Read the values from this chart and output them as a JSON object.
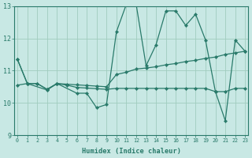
{
  "xlabel": "Humidex (Indice chaleur)",
  "bg_color": "#c8e8e4",
  "line_color": "#297a6a",
  "grid_color": "#a0ccbe",
  "xlim": [
    -0.3,
    23.3
  ],
  "ylim": [
    9,
    13
  ],
  "yticks": [
    9,
    10,
    11,
    12,
    13
  ],
  "xticks": [
    0,
    1,
    2,
    3,
    4,
    5,
    6,
    7,
    8,
    9,
    10,
    11,
    12,
    13,
    14,
    15,
    16,
    17,
    18,
    19,
    20,
    21,
    22,
    23
  ],
  "line_volatile_x": [
    0,
    1,
    3,
    4,
    6,
    7,
    8,
    9,
    10,
    11,
    12,
    13,
    14,
    15,
    16,
    17,
    18,
    19,
    20,
    21,
    22,
    23
  ],
  "line_volatile_y": [
    11.35,
    10.6,
    10.4,
    10.6,
    10.3,
    10.3,
    9.85,
    9.95,
    12.2,
    13.05,
    13.05,
    11.15,
    11.8,
    12.85,
    12.85,
    12.4,
    12.75,
    11.95,
    10.35,
    9.45,
    11.95,
    11.6
  ],
  "line_rising_x": [
    0,
    1,
    2,
    3,
    4,
    5,
    6,
    7,
    8,
    9,
    10,
    11,
    12,
    13,
    14,
    15,
    16,
    17,
    18,
    19,
    20,
    21,
    22,
    23
  ],
  "line_rising_y": [
    11.35,
    10.6,
    10.6,
    10.42,
    10.6,
    10.58,
    10.56,
    10.54,
    10.52,
    10.5,
    10.88,
    10.95,
    11.05,
    11.08,
    11.12,
    11.18,
    11.22,
    11.28,
    11.32,
    11.38,
    11.42,
    11.5,
    11.55,
    11.6
  ],
  "line_flat_x": [
    0,
    1,
    2,
    3,
    4,
    5,
    6,
    7,
    8,
    9,
    10,
    11,
    12,
    13,
    14,
    15,
    16,
    17,
    18,
    19,
    20,
    21,
    22,
    23
  ],
  "line_flat_y": [
    10.55,
    10.6,
    10.6,
    10.42,
    10.6,
    10.55,
    10.48,
    10.46,
    10.44,
    10.42,
    10.45,
    10.45,
    10.45,
    10.45,
    10.45,
    10.45,
    10.45,
    10.45,
    10.45,
    10.45,
    10.35,
    10.35,
    10.45,
    10.45
  ]
}
